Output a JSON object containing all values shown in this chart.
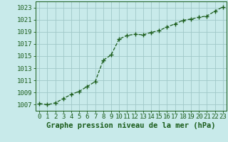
{
  "x": [
    0,
    1,
    2,
    3,
    4,
    5,
    6,
    7,
    8,
    9,
    10,
    11,
    12,
    13,
    14,
    15,
    16,
    17,
    18,
    19,
    20,
    21,
    22,
    23
  ],
  "y": [
    1007.2,
    1007.0,
    1007.3,
    1008.0,
    1008.7,
    1009.2,
    1010.0,
    1010.8,
    1014.3,
    1015.2,
    1017.8,
    1018.4,
    1018.6,
    1018.5,
    1018.9,
    1019.2,
    1019.8,
    1020.3,
    1020.9,
    1021.1,
    1021.4,
    1021.6,
    1022.4,
    1023.1
  ],
  "line_color": "#1a5c1a",
  "marker": "+",
  "marker_size": 4,
  "line_width": 0.9,
  "background_color": "#c8eaea",
  "grid_color": "#a0c8c8",
  "xlabel": "Graphe pression niveau de la mer (hPa)",
  "xlabel_fontsize": 7.5,
  "xlabel_color": "#1a5c1a",
  "ytick_values": [
    1007,
    1009,
    1011,
    1013,
    1015,
    1017,
    1019,
    1021,
    1023
  ],
  "ylim": [
    1006.0,
    1024.0
  ],
  "xlim": [
    -0.5,
    23.5
  ],
  "tick_fontsize": 6.5,
  "tick_color": "#1a5c1a"
}
